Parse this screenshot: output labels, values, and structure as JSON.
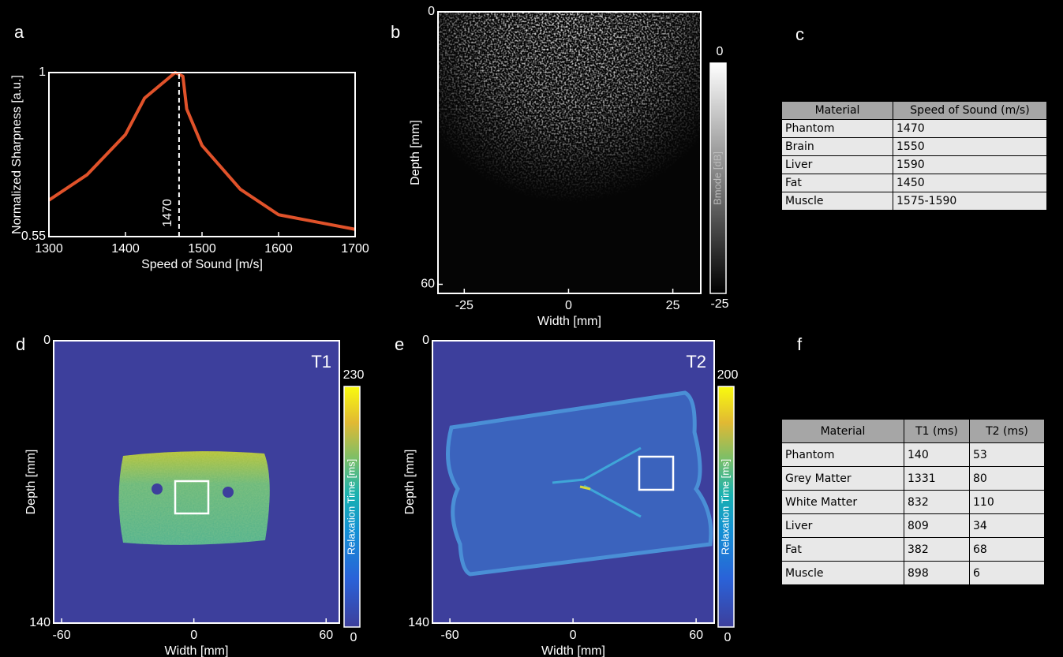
{
  "panel_labels": [
    "a",
    "b",
    "c",
    "d",
    "e",
    "f"
  ],
  "chart_data": [
    {
      "type": "line",
      "x": [
        1300,
        1350,
        1400,
        1425,
        1465,
        1475,
        1480,
        1500,
        1550,
        1600,
        1700
      ],
      "values": [
        0.65,
        0.72,
        0.83,
        0.93,
        1.0,
        0.99,
        0.9,
        0.8,
        0.68,
        0.61,
        0.57
      ],
      "color": "#e0522a",
      "xlabel": "Speed of Sound [m/s]",
      "ylabel": "Normalized Sharpness [a.u.]",
      "xlim": [
        1300,
        1700
      ],
      "ylim": [
        0.55,
        1
      ],
      "xticks": [
        1300,
        1400,
        1500,
        1600,
        1700
      ],
      "yticks": [
        0.55,
        1
      ],
      "marker_x": 1470
    },
    {
      "type": "image",
      "xlabel": "Width [mm]",
      "ylabel": "Depth [mm]",
      "xlim": [
        -31.3,
        31.7
      ],
      "ylim": [
        0,
        62
      ],
      "xticks": [
        -25,
        0,
        25
      ],
      "yticks": [
        0,
        60
      ],
      "yreverse": true,
      "colorbar": {
        "label": "Bmode [dB]",
        "lim": [
          -25,
          0
        ],
        "ticks": [
          0,
          -25
        ],
        "colormap": "gray"
      }
    },
    {
      "type": "image",
      "xlabel": "Width [mm]",
      "ylabel": "Depth [mm]",
      "xlim": [
        -63.6,
        66
      ],
      "ylim": [
        0,
        140
      ],
      "xticks": [
        -60,
        0,
        60
      ],
      "yticks": [
        0,
        140
      ],
      "yreverse": true,
      "annotation": "T1",
      "colorbar": {
        "label": "Relaxation Time [ms]",
        "lim": [
          0,
          230
        ],
        "ticks": [
          230,
          0
        ],
        "colormap": "parula"
      }
    },
    {
      "type": "image",
      "xlabel": "Width [mm]",
      "ylabel": "Depth [mm]",
      "xlim": [
        -68.5,
        68.8
      ],
      "ylim": [
        0,
        140
      ],
      "xticks": [
        -60,
        0,
        60
      ],
      "yticks": [
        0,
        140
      ],
      "yreverse": true,
      "annotation": "T2",
      "colorbar": {
        "label": "Relaxation Time [ms]",
        "lim": [
          0,
          200
        ],
        "ticks": [
          200,
          0
        ],
        "colormap": "parula"
      }
    }
  ],
  "tables": [
    {
      "columns": [
        "Material",
        "Speed of Sound (m/s)"
      ],
      "rows": [
        [
          "Phantom",
          1470
        ],
        [
          "Brain",
          1550
        ],
        [
          "Liver",
          1590
        ],
        [
          "Fat",
          1450
        ],
        [
          "Muscle",
          "1575-1590"
        ]
      ]
    },
    {
      "columns": [
        "Material",
        "T1 (ms)",
        "T2 (ms)"
      ],
      "rows": [
        [
          "Phantom",
          140,
          53
        ],
        [
          "Grey Matter",
          1331,
          80
        ],
        [
          "White Matter",
          832,
          110
        ],
        [
          "Liver",
          809,
          34
        ],
        [
          "Fat",
          382,
          68
        ],
        [
          "Muscle",
          898,
          6
        ]
      ]
    }
  ]
}
